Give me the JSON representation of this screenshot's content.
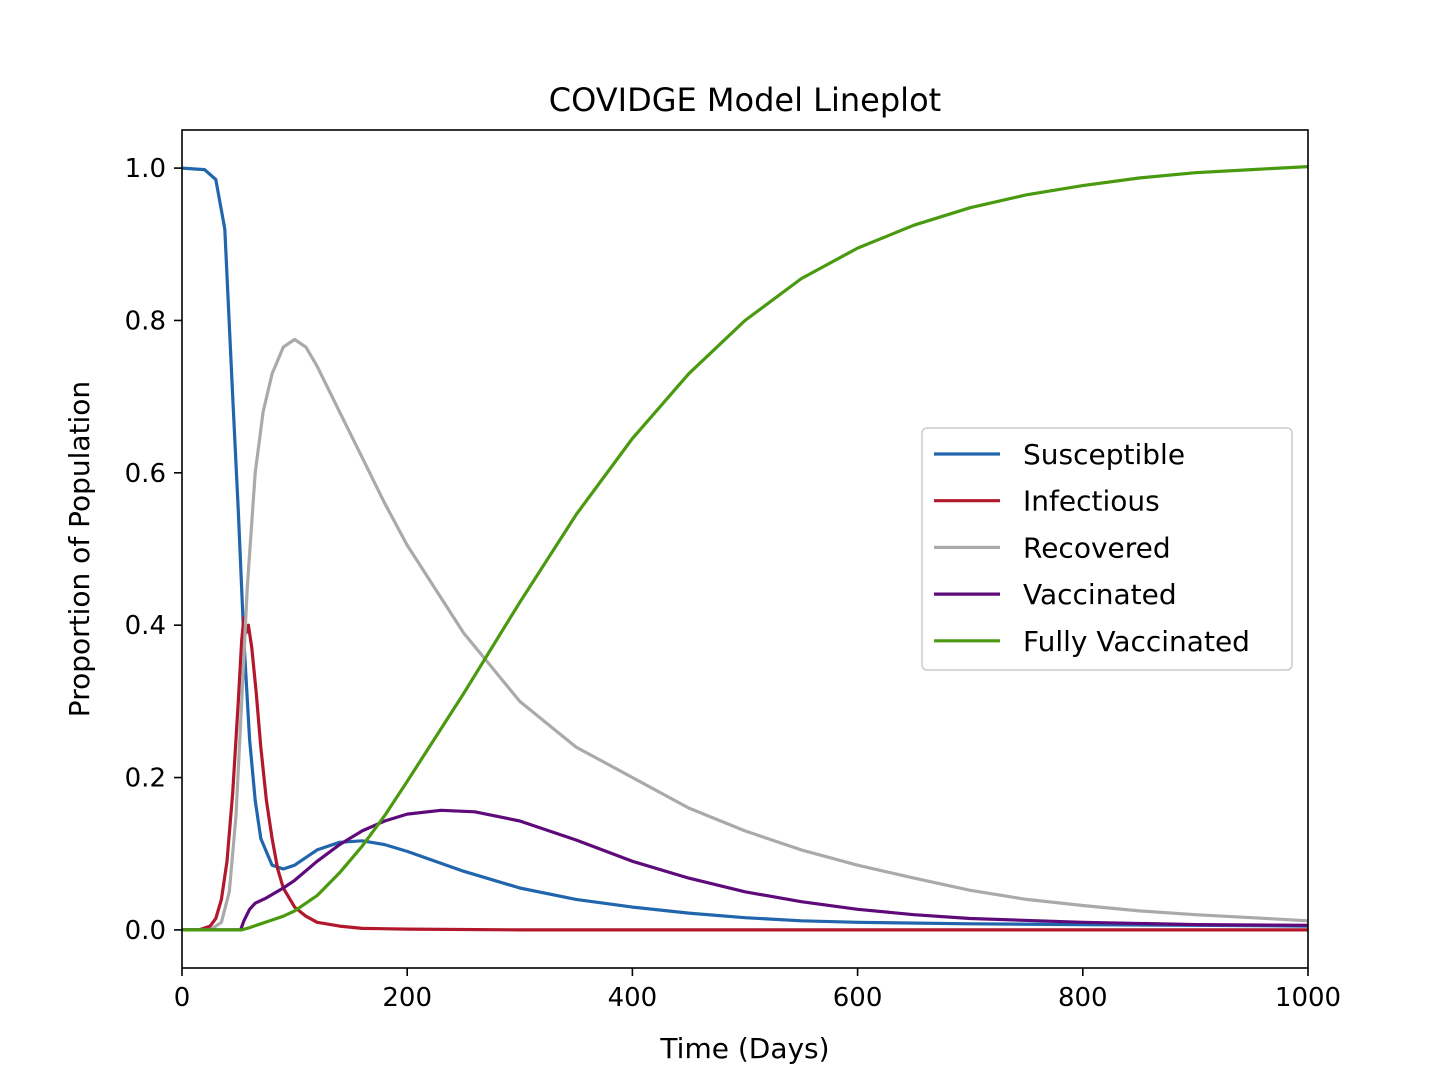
{
  "chart_data": {
    "type": "line",
    "title": "COVIDGE Model Lineplot",
    "xlabel": "Time (Days)",
    "ylabel": "Proportion of Population",
    "xlim": [
      0,
      1000
    ],
    "ylim": [
      -0.05,
      1.05
    ],
    "xticks": [
      0,
      200,
      400,
      600,
      800,
      1000
    ],
    "xtick_labels": [
      "0",
      "200",
      "400",
      "600",
      "800",
      "1000"
    ],
    "yticks": [
      0.0,
      0.2,
      0.4,
      0.6,
      0.8,
      1.0
    ],
    "ytick_labels": [
      "0.0",
      "0.2",
      "0.4",
      "0.6",
      "0.8",
      "1.0"
    ],
    "grid": false,
    "legend_position": "center-right",
    "series": [
      {
        "name": "Susceptible",
        "color": "#2166ac",
        "points": [
          [
            0,
            1.0
          ],
          [
            20,
            0.998
          ],
          [
            30,
            0.985
          ],
          [
            38,
            0.92
          ],
          [
            45,
            0.7
          ],
          [
            50,
            0.55
          ],
          [
            55,
            0.38
          ],
          [
            60,
            0.25
          ],
          [
            65,
            0.17
          ],
          [
            70,
            0.12
          ],
          [
            80,
            0.085
          ],
          [
            90,
            0.08
          ],
          [
            100,
            0.085
          ],
          [
            120,
            0.105
          ],
          [
            140,
            0.115
          ],
          [
            160,
            0.117
          ],
          [
            180,
            0.112
          ],
          [
            200,
            0.103
          ],
          [
            250,
            0.077
          ],
          [
            300,
            0.055
          ],
          [
            350,
            0.04
          ],
          [
            400,
            0.03
          ],
          [
            450,
            0.022
          ],
          [
            500,
            0.016
          ],
          [
            550,
            0.012
          ],
          [
            600,
            0.01
          ],
          [
            700,
            0.008
          ],
          [
            800,
            0.007
          ],
          [
            900,
            0.006
          ],
          [
            1000,
            0.005
          ]
        ]
      },
      {
        "name": "Infectious",
        "color": "#b2182b",
        "points": [
          [
            0,
            0.0
          ],
          [
            15,
            0.0
          ],
          [
            25,
            0.005
          ],
          [
            30,
            0.015
          ],
          [
            35,
            0.04
          ],
          [
            40,
            0.09
          ],
          [
            45,
            0.18
          ],
          [
            50,
            0.3
          ],
          [
            53,
            0.38
          ],
          [
            55,
            0.41
          ],
          [
            57,
            0.39
          ],
          [
            59,
            0.4
          ],
          [
            62,
            0.37
          ],
          [
            66,
            0.31
          ],
          [
            70,
            0.24
          ],
          [
            75,
            0.17
          ],
          [
            80,
            0.12
          ],
          [
            85,
            0.08
          ],
          [
            90,
            0.055
          ],
          [
            100,
            0.03
          ],
          [
            110,
            0.018
          ],
          [
            120,
            0.01
          ],
          [
            140,
            0.005
          ],
          [
            160,
            0.002
          ],
          [
            200,
            0.001
          ],
          [
            300,
            0.0
          ],
          [
            500,
            0.0
          ],
          [
            1000,
            0.0
          ]
        ]
      },
      {
        "name": "Recovered",
        "color": "#aaaaaa",
        "points": [
          [
            0,
            0.0
          ],
          [
            25,
            0.0
          ],
          [
            35,
            0.01
          ],
          [
            42,
            0.05
          ],
          [
            48,
            0.15
          ],
          [
            53,
            0.3
          ],
          [
            58,
            0.45
          ],
          [
            65,
            0.6
          ],
          [
            72,
            0.68
          ],
          [
            80,
            0.73
          ],
          [
            90,
            0.765
          ],
          [
            100,
            0.775
          ],
          [
            110,
            0.765
          ],
          [
            120,
            0.74
          ],
          [
            140,
            0.68
          ],
          [
            160,
            0.62
          ],
          [
            180,
            0.56
          ],
          [
            200,
            0.505
          ],
          [
            250,
            0.39
          ],
          [
            300,
            0.3
          ],
          [
            350,
            0.24
          ],
          [
            400,
            0.2
          ],
          [
            450,
            0.16
          ],
          [
            500,
            0.13
          ],
          [
            550,
            0.105
          ],
          [
            600,
            0.085
          ],
          [
            650,
            0.068
          ],
          [
            700,
            0.052
          ],
          [
            750,
            0.04
          ],
          [
            800,
            0.032
          ],
          [
            850,
            0.025
          ],
          [
            900,
            0.02
          ],
          [
            950,
            0.016
          ],
          [
            1000,
            0.012
          ]
        ]
      },
      {
        "name": "Vaccinated",
        "color": "#5e0a7a",
        "points": [
          [
            0,
            0.0
          ],
          [
            52,
            0.0
          ],
          [
            55,
            0.012
          ],
          [
            60,
            0.027
          ],
          [
            65,
            0.035
          ],
          [
            75,
            0.042
          ],
          [
            90,
            0.055
          ],
          [
            100,
            0.065
          ],
          [
            120,
            0.09
          ],
          [
            140,
            0.112
          ],
          [
            160,
            0.13
          ],
          [
            180,
            0.143
          ],
          [
            200,
            0.152
          ],
          [
            230,
            0.157
          ],
          [
            260,
            0.155
          ],
          [
            300,
            0.143
          ],
          [
            350,
            0.118
          ],
          [
            400,
            0.09
          ],
          [
            450,
            0.068
          ],
          [
            500,
            0.05
          ],
          [
            550,
            0.037
          ],
          [
            600,
            0.027
          ],
          [
            650,
            0.02
          ],
          [
            700,
            0.015
          ],
          [
            800,
            0.01
          ],
          [
            900,
            0.007
          ],
          [
            1000,
            0.006
          ]
        ]
      },
      {
        "name": "Fully Vaccinated",
        "color": "#4a9a10",
        "points": [
          [
            0,
            0.0
          ],
          [
            53,
            0.0
          ],
          [
            60,
            0.003
          ],
          [
            70,
            0.008
          ],
          [
            80,
            0.013
          ],
          [
            90,
            0.018
          ],
          [
            100,
            0.025
          ],
          [
            120,
            0.045
          ],
          [
            140,
            0.075
          ],
          [
            160,
            0.11
          ],
          [
            180,
            0.15
          ],
          [
            200,
            0.195
          ],
          [
            250,
            0.31
          ],
          [
            300,
            0.43
          ],
          [
            350,
            0.545
          ],
          [
            400,
            0.645
          ],
          [
            450,
            0.73
          ],
          [
            500,
            0.8
          ],
          [
            550,
            0.855
          ],
          [
            600,
            0.895
          ],
          [
            650,
            0.925
          ],
          [
            700,
            0.948
          ],
          [
            750,
            0.965
          ],
          [
            800,
            0.977
          ],
          [
            850,
            0.987
          ],
          [
            900,
            0.994
          ],
          [
            950,
            0.998
          ],
          [
            1000,
            1.002
          ]
        ]
      }
    ]
  }
}
